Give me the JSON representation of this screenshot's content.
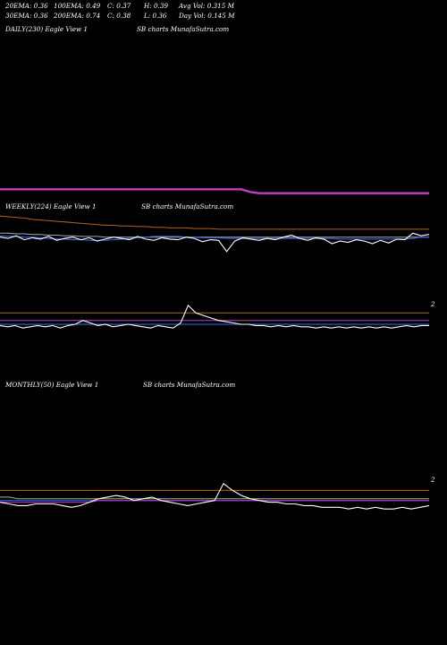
{
  "header": {
    "row1": [
      "20EMA: 0.36",
      "100EMA: 0.49",
      "C: 0.37",
      "H: 0.39",
      "Avg Vol: 0.315 M"
    ],
    "row2": [
      "30EMA: 0.36",
      "200EMA: 0.74",
      "C: 0.38",
      "L: 0.36",
      "Day Vol: 0.145 M"
    ]
  },
  "colors": {
    "white": "#ffffff",
    "blue": "#3a6cff",
    "magenta": "#c040c0",
    "orange": "#b8621a",
    "grey": "#aaaaaa",
    "background": "#000000"
  },
  "panels": {
    "daily": {
      "label": "DAILY(230) Eagle   View  1",
      "watermark": "SB charts MunafaSutra.com"
    },
    "weekly": {
      "label": "WEEKLY(224) Eagle   View  1",
      "watermark": "SB charts MunafaSutra.com",
      "tick": "2"
    },
    "monthly": {
      "label": "MONTHLY(50) Eagle   View  1",
      "watermark": "SB charts MunafaSutra.com",
      "tick": "2"
    }
  },
  "chart_data": [
    {
      "type": "line",
      "panel": "daily",
      "series": [
        {
          "color": "magenta",
          "values": [
            0.5,
            0.5,
            0.5,
            0.5,
            0.5,
            0.5,
            0.5,
            0.5,
            0.5,
            0.5,
            0.5,
            0.5,
            0.5,
            0.5,
            0.5,
            0.5,
            0.5,
            0.5,
            0.5,
            0.5,
            0.5,
            0.5,
            0.5,
            0.5,
            0.5,
            0.5,
            0.5,
            0.5,
            0.48,
            0.47,
            0.47,
            0.47,
            0.47,
            0.47,
            0.47,
            0.47,
            0.47,
            0.47,
            0.47,
            0.47,
            0.47,
            0.47,
            0.47,
            0.47,
            0.47,
            0.47,
            0.47,
            0.47,
            0.47
          ]
        }
      ]
    },
    {
      "type": "line",
      "panel": "weekly",
      "series": [
        {
          "color": "white",
          "values": [
            0.4,
            0.38,
            0.42,
            0.36,
            0.39,
            0.37,
            0.41,
            0.35,
            0.38,
            0.4,
            0.36,
            0.39,
            0.34,
            0.37,
            0.4,
            0.38,
            0.36,
            0.41,
            0.37,
            0.35,
            0.39,
            0.37,
            0.36,
            0.4,
            0.38,
            0.33,
            0.36,
            0.35,
            0.18,
            0.34,
            0.39,
            0.37,
            0.35,
            0.38,
            0.36,
            0.4,
            0.43,
            0.38,
            0.35,
            0.39,
            0.37,
            0.3,
            0.34,
            0.32,
            0.36,
            0.34,
            0.3,
            0.35,
            0.31,
            0.37,
            0.36,
            0.46,
            0.42,
            0.44
          ]
        },
        {
          "color": "blue",
          "values": [
            0.42,
            0.41,
            0.41,
            0.4,
            0.4,
            0.39,
            0.38,
            0.37,
            0.37,
            0.36,
            0.36,
            0.35,
            0.35,
            0.35,
            0.36,
            0.37,
            0.38,
            0.39,
            0.4,
            0.41,
            0.41,
            0.41,
            0.41,
            0.4,
            0.4,
            0.39,
            0.39,
            0.39,
            0.38,
            0.38,
            0.38,
            0.38,
            0.38,
            0.38,
            0.38,
            0.38,
            0.38,
            0.38,
            0.38,
            0.38,
            0.38,
            0.38,
            0.37,
            0.37,
            0.37,
            0.37,
            0.37,
            0.37,
            0.37,
            0.37,
            0.37,
            0.38,
            0.4,
            0.4
          ]
        },
        {
          "color": "grey",
          "values": [
            0.46,
            0.46,
            0.45,
            0.45,
            0.44,
            0.44,
            0.43,
            0.43,
            0.42,
            0.42,
            0.41,
            0.41,
            0.41,
            0.4,
            0.4,
            0.4,
            0.4,
            0.4,
            0.4,
            0.4,
            0.4,
            0.4,
            0.4,
            0.4,
            0.4,
            0.4,
            0.4,
            0.4,
            0.4,
            0.4,
            0.4,
            0.4,
            0.4,
            0.4,
            0.4,
            0.4,
            0.4,
            0.4,
            0.4,
            0.4,
            0.4,
            0.4,
            0.4,
            0.4,
            0.4,
            0.4,
            0.4,
            0.4,
            0.4,
            0.4,
            0.4,
            0.4,
            0.4,
            0.4
          ]
        },
        {
          "color": "orange",
          "values": [
            0.72,
            0.71,
            0.7,
            0.69,
            0.67,
            0.66,
            0.65,
            0.64,
            0.63,
            0.62,
            0.61,
            0.6,
            0.59,
            0.58,
            0.58,
            0.57,
            0.57,
            0.56,
            0.56,
            0.55,
            0.55,
            0.54,
            0.54,
            0.54,
            0.53,
            0.53,
            0.53,
            0.52,
            0.52,
            0.52,
            0.52,
            0.52,
            0.52,
            0.52,
            0.52,
            0.52,
            0.52,
            0.52,
            0.52,
            0.52,
            0.52,
            0.52,
            0.52,
            0.52,
            0.52,
            0.52,
            0.52,
            0.52,
            0.52,
            0.52,
            0.52,
            0.52,
            0.52,
            0.52
          ]
        }
      ]
    },
    {
      "type": "line",
      "panel": "weekly-lower",
      "series": [
        {
          "color": "white",
          "values": [
            0.36,
            0.35,
            0.36,
            0.34,
            0.35,
            0.36,
            0.35,
            0.36,
            0.34,
            0.36,
            0.37,
            0.4,
            0.38,
            0.36,
            0.37,
            0.35,
            0.36,
            0.37,
            0.36,
            0.35,
            0.34,
            0.36,
            0.35,
            0.34,
            0.38,
            0.52,
            0.46,
            0.44,
            0.42,
            0.4,
            0.39,
            0.38,
            0.37,
            0.37,
            0.36,
            0.36,
            0.35,
            0.36,
            0.35,
            0.36,
            0.35,
            0.35,
            0.34,
            0.35,
            0.34,
            0.35,
            0.34,
            0.35,
            0.34,
            0.35,
            0.34,
            0.35,
            0.34,
            0.35,
            0.36,
            0.35,
            0.36,
            0.36
          ]
        },
        {
          "color": "magenta",
          "values": [
            0.4,
            0.4,
            0.4,
            0.4,
            0.4,
            0.4,
            0.4,
            0.4,
            0.4,
            0.4,
            0.4,
            0.4,
            0.4,
            0.4,
            0.4,
            0.4,
            0.4,
            0.4,
            0.4,
            0.4,
            0.4,
            0.4,
            0.4,
            0.4,
            0.4,
            0.4,
            0.4,
            0.4,
            0.4,
            0.4,
            0.4,
            0.4,
            0.4,
            0.4,
            0.4,
            0.4,
            0.4,
            0.4,
            0.4,
            0.4,
            0.4,
            0.4,
            0.4,
            0.4,
            0.4,
            0.4,
            0.4,
            0.4,
            0.4,
            0.4,
            0.4,
            0.4,
            0.4,
            0.4,
            0.4,
            0.4,
            0.4,
            0.4
          ]
        },
        {
          "color": "blue",
          "values": [
            0.37,
            0.37,
            0.37,
            0.37,
            0.37,
            0.37,
            0.37,
            0.37,
            0.37,
            0.37,
            0.37,
            0.37,
            0.37,
            0.37,
            0.37,
            0.37,
            0.37,
            0.37,
            0.37,
            0.37,
            0.37,
            0.37,
            0.37,
            0.37,
            0.37,
            0.37,
            0.37,
            0.37,
            0.37,
            0.37,
            0.37,
            0.37,
            0.37,
            0.37,
            0.37,
            0.37,
            0.37,
            0.37,
            0.37,
            0.37,
            0.37,
            0.37,
            0.37,
            0.37,
            0.37,
            0.37,
            0.37,
            0.37,
            0.37,
            0.37,
            0.37,
            0.37,
            0.37,
            0.37,
            0.37,
            0.37,
            0.37,
            0.37
          ]
        },
        {
          "color": "orange",
          "values": [
            0.46,
            0.46,
            0.46,
            0.46,
            0.46,
            0.46,
            0.46,
            0.46,
            0.46,
            0.46,
            0.46,
            0.46,
            0.46,
            0.46,
            0.46,
            0.46,
            0.46,
            0.46,
            0.46,
            0.46,
            0.46,
            0.46,
            0.46,
            0.46,
            0.46,
            0.46,
            0.46,
            0.46,
            0.46,
            0.46,
            0.46,
            0.46,
            0.46,
            0.46,
            0.46,
            0.46,
            0.46,
            0.46,
            0.46,
            0.46,
            0.46,
            0.46,
            0.46,
            0.46,
            0.46,
            0.46,
            0.46,
            0.46,
            0.46,
            0.46,
            0.46,
            0.46,
            0.46,
            0.46,
            0.46,
            0.46,
            0.46,
            0.46
          ]
        }
      ]
    },
    {
      "type": "line",
      "panel": "monthly",
      "series": [
        {
          "color": "white",
          "values": [
            0.37,
            0.36,
            0.35,
            0.35,
            0.36,
            0.36,
            0.36,
            0.35,
            0.34,
            0.35,
            0.37,
            0.39,
            0.4,
            0.41,
            0.4,
            0.38,
            0.39,
            0.4,
            0.38,
            0.37,
            0.36,
            0.35,
            0.36,
            0.37,
            0.38,
            0.48,
            0.44,
            0.41,
            0.39,
            0.38,
            0.37,
            0.37,
            0.36,
            0.36,
            0.35,
            0.35,
            0.34,
            0.34,
            0.34,
            0.33,
            0.34,
            0.33,
            0.34,
            0.33,
            0.33,
            0.34,
            0.33,
            0.34,
            0.35
          ]
        },
        {
          "color": "magenta",
          "values": [
            0.37,
            0.37,
            0.37,
            0.37,
            0.37,
            0.37,
            0.37,
            0.37,
            0.37,
            0.37,
            0.37,
            0.38,
            0.38,
            0.38,
            0.38,
            0.38,
            0.38,
            0.38,
            0.38,
            0.38,
            0.38,
            0.38,
            0.38,
            0.38,
            0.38,
            0.38,
            0.38,
            0.38,
            0.38,
            0.38,
            0.38,
            0.38,
            0.38,
            0.38,
            0.38,
            0.38,
            0.38,
            0.38,
            0.38,
            0.38,
            0.38,
            0.38,
            0.38,
            0.38,
            0.38,
            0.38,
            0.38,
            0.38,
            0.38
          ]
        },
        {
          "color": "blue",
          "values": [
            0.38,
            0.38,
            0.38,
            0.38,
            0.38,
            0.38,
            0.38,
            0.38,
            0.38,
            0.38,
            0.38,
            0.38,
            0.38,
            0.38,
            0.38,
            0.38,
            0.38,
            0.38,
            0.38,
            0.38,
            0.38,
            0.38,
            0.38,
            0.38,
            0.38,
            0.38,
            0.38,
            0.38,
            0.38,
            0.38,
            0.38,
            0.38,
            0.38,
            0.38,
            0.38,
            0.38,
            0.38,
            0.38,
            0.38,
            0.38,
            0.38,
            0.38,
            0.38,
            0.38,
            0.38,
            0.38,
            0.38,
            0.38,
            0.38
          ]
        },
        {
          "color": "grey",
          "values": [
            0.4,
            0.4,
            0.39,
            0.39,
            0.39,
            0.39,
            0.39,
            0.39,
            0.39,
            0.39,
            0.39,
            0.39,
            0.39,
            0.39,
            0.39,
            0.39,
            0.39,
            0.39,
            0.39,
            0.39,
            0.39,
            0.39,
            0.39,
            0.39,
            0.39,
            0.39,
            0.39,
            0.39,
            0.39,
            0.39,
            0.39,
            0.39,
            0.39,
            0.39,
            0.39,
            0.39,
            0.39,
            0.39,
            0.39,
            0.39,
            0.39,
            0.39,
            0.39,
            0.39,
            0.39,
            0.39,
            0.39,
            0.39,
            0.39
          ]
        },
        {
          "color": "orange",
          "values": [
            0.44,
            0.44,
            0.44,
            0.44,
            0.44,
            0.44,
            0.44,
            0.44,
            0.44,
            0.44,
            0.44,
            0.44,
            0.44,
            0.44,
            0.44,
            0.44,
            0.44,
            0.44,
            0.44,
            0.44,
            0.44,
            0.44,
            0.44,
            0.44,
            0.44,
            0.44,
            0.44,
            0.44,
            0.44,
            0.44,
            0.44,
            0.44,
            0.44,
            0.44,
            0.44,
            0.44,
            0.44,
            0.44,
            0.44,
            0.44,
            0.44,
            0.44,
            0.44,
            0.44,
            0.44,
            0.44,
            0.44,
            0.44,
            0.44
          ]
        }
      ]
    }
  ]
}
